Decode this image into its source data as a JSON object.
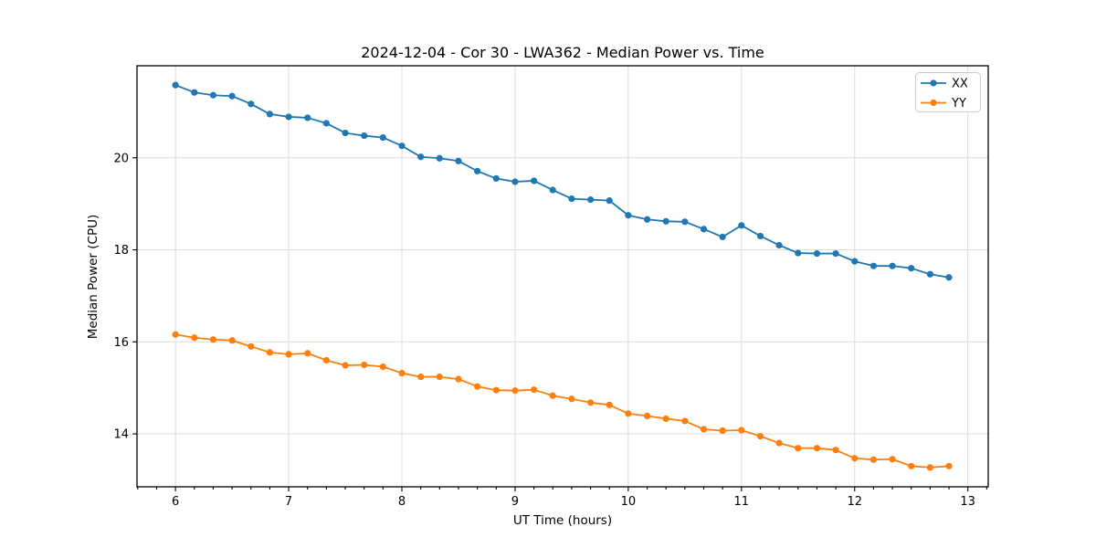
{
  "chart_data": {
    "type": "line",
    "title": "2024-12-04 - Cor 30 - LWA362 - Median Power vs. Time",
    "xlabel": "UT Time (hours)",
    "ylabel": "Median Power (CPU)",
    "xlim": [
      5.66,
      13.18
    ],
    "ylim": [
      12.85,
      22.0
    ],
    "xticks": [
      6,
      7,
      8,
      9,
      10,
      11,
      12,
      13
    ],
    "yticks": [
      14,
      16,
      18,
      20
    ],
    "x_minor_interval": 0.1667,
    "grid": true,
    "legend_position": "upper right",
    "marker": "circle",
    "x": [
      6.0,
      6.167,
      6.333,
      6.5,
      6.667,
      6.833,
      7.0,
      7.167,
      7.333,
      7.5,
      7.667,
      7.833,
      8.0,
      8.167,
      8.333,
      8.5,
      8.667,
      8.833,
      9.0,
      9.167,
      9.333,
      9.5,
      9.667,
      9.833,
      10.0,
      10.167,
      10.333,
      10.5,
      10.667,
      10.833,
      11.0,
      11.167,
      11.333,
      11.5,
      11.667,
      11.833,
      12.0,
      12.167,
      12.333,
      12.5,
      12.667,
      12.833
    ],
    "series": [
      {
        "name": "XX",
        "color": "#1f77b4",
        "values": [
          21.58,
          21.42,
          21.36,
          21.34,
          21.17,
          20.95,
          20.89,
          20.87,
          20.75,
          20.54,
          20.48,
          20.44,
          20.26,
          20.02,
          19.99,
          19.93,
          19.71,
          19.55,
          19.48,
          19.5,
          19.3,
          19.11,
          19.09,
          19.07,
          18.75,
          18.66,
          18.62,
          18.61,
          18.45,
          18.28,
          18.53,
          18.3,
          18.1,
          17.93,
          17.92,
          17.92,
          17.75,
          17.65,
          17.65,
          17.6,
          17.47,
          17.4
        ]
      },
      {
        "name": "YY",
        "color": "#ff7f0e",
        "values": [
          16.16,
          16.09,
          16.05,
          16.03,
          15.9,
          15.77,
          15.73,
          15.75,
          15.6,
          15.49,
          15.5,
          15.46,
          15.32,
          15.24,
          15.24,
          15.19,
          15.03,
          14.95,
          14.94,
          14.96,
          14.83,
          14.76,
          14.68,
          14.63,
          14.44,
          14.39,
          14.33,
          14.28,
          14.1,
          14.07,
          14.08,
          13.95,
          13.8,
          13.69,
          13.69,
          13.65,
          13.47,
          13.44,
          13.45,
          13.3,
          13.27,
          13.3
        ]
      }
    ]
  }
}
